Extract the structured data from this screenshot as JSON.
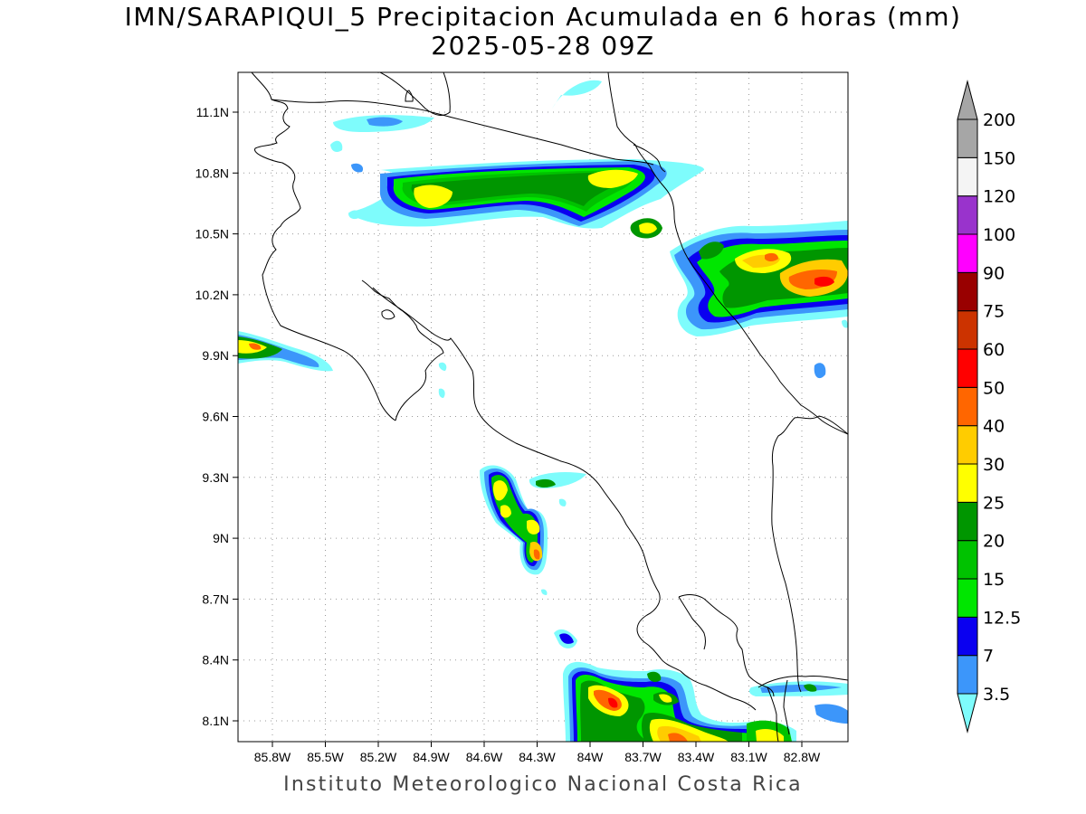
{
  "title": {
    "line1": "IMN/SARAPIQUI_5 Precipitacion Acumulada en 6 horas (mm)",
    "line2": "2025-05-28 09Z"
  },
  "footer": "Instituto Meteorologico Nacional Costa Rica",
  "map": {
    "lon_range": [
      -86.0,
      -82.6
    ],
    "lat_range": [
      7.99,
      11.2
    ],
    "lat_ticks": [
      "11.1N",
      "10.8N",
      "10.5N",
      "10.2N",
      "9.9N",
      "9.6N",
      "9.3N",
      "9N",
      "8.7N",
      "8.4N",
      "8.1N"
    ],
    "lon_ticks": [
      "85.8W",
      "85.5W",
      "85.2W",
      "84.9W",
      "84.6W",
      "84.3W",
      "84W",
      "83.7W",
      "83.4W",
      "83.1W",
      "82.8W"
    ],
    "grid": "dotted"
  },
  "colorbar": {
    "labels": [
      "3.5",
      "7",
      "12.5",
      "15",
      "20",
      "25",
      "30",
      "40",
      "50",
      "60",
      "75",
      "90",
      "100",
      "120",
      "150",
      "200"
    ],
    "colors": [
      "#7efcfc",
      "#3c96fa",
      "#0a00f0",
      "#00e600",
      "#00c200",
      "#009600",
      "#ffff00",
      "#ffcc00",
      "#ff6600",
      "#ff0000",
      "#cc3300",
      "#990000",
      "#ff00ff",
      "#9933cc",
      "#f4f4f4",
      "#a6a6a6"
    ]
  }
}
